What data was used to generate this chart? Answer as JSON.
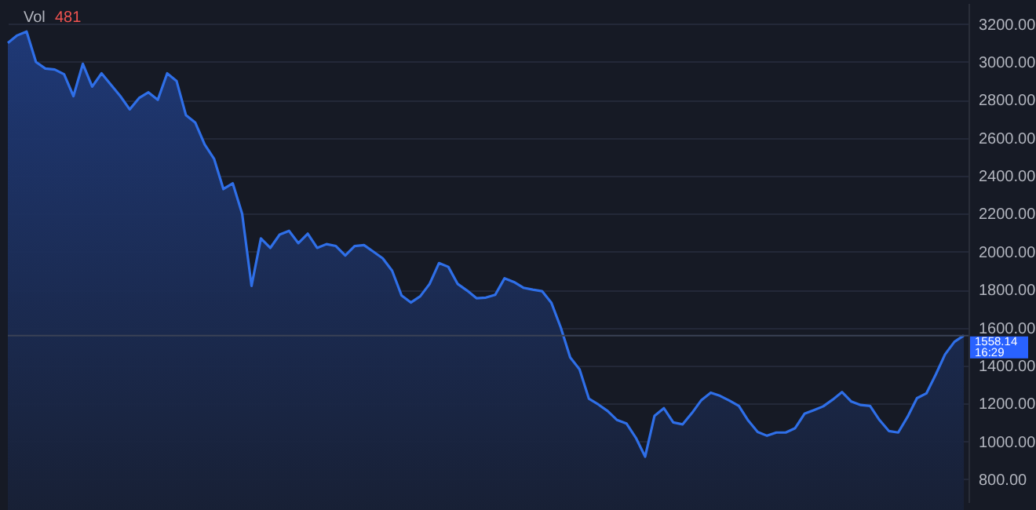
{
  "chart_data": {
    "type": "area",
    "categories": [
      null,
      null,
      null,
      null,
      null,
      null,
      null,
      null,
      null,
      null,
      null,
      null,
      null,
      null,
      null,
      null,
      null,
      null,
      null,
      null,
      null,
      null,
      null,
      null,
      null,
      null,
      null,
      null,
      null,
      null,
      null,
      null,
      null,
      null,
      null,
      null,
      null,
      null,
      null,
      null,
      null,
      null,
      null,
      null,
      null,
      null,
      null,
      null,
      null,
      null,
      null,
      null,
      null,
      null,
      null,
      null,
      null,
      null,
      null,
      null,
      null,
      null,
      null,
      null,
      null,
      null,
      null,
      null,
      null,
      null,
      null,
      null,
      null,
      null,
      null,
      null,
      null,
      null,
      null,
      null,
      null,
      null,
      null,
      null,
      null,
      null,
      null,
      null,
      null,
      null,
      null,
      null,
      null,
      null,
      null,
      null,
      null,
      null,
      null,
      null,
      null,
      null,
      null
    ],
    "series": [
      {
        "color": "#2f6fe8",
        "values": [
          3100,
          3140,
          3160,
          3000,
          2965,
          2960,
          2935,
          2820,
          2990,
          2870,
          2940,
          2880,
          2820,
          2750,
          2810,
          2840,
          2800,
          2940,
          2900,
          2720,
          2680,
          2565,
          2490,
          2330,
          2360,
          2200,
          1820,
          2070,
          2020,
          2090,
          2110,
          2045,
          2095,
          2020,
          2040,
          2030,
          1980,
          2030,
          2035,
          2000,
          1965,
          1900,
          1770,
          1732,
          1765,
          1830,
          1940,
          1920,
          1830,
          1795,
          1755,
          1758,
          1773,
          1860,
          1840,
          1810,
          1800,
          1792,
          1730,
          1600,
          1443,
          1380,
          1225,
          1195,
          1160,
          1113,
          1095,
          1020,
          920,
          1135,
          1175,
          1100,
          1090,
          1150,
          1218,
          1257,
          1240,
          1215,
          1187,
          1110,
          1050,
          1030,
          1047,
          1047,
          1070,
          1146,
          1165,
          1185,
          1220,
          1260,
          1210,
          1192,
          1187,
          1113,
          1055,
          1047,
          1130,
          1228,
          1253,
          1352,
          1459,
          1525,
          1558.14
        ]
      }
    ],
    "ylim": [
      680,
      3310
    ],
    "yticks": [
      {
        "value": 800,
        "label": "800.00"
      },
      {
        "value": 1000,
        "label": "1000.00"
      },
      {
        "value": 1200,
        "label": "1200.00"
      },
      {
        "value": 1400,
        "label": "1400.00"
      },
      {
        "value": 1600,
        "label": "1600.00"
      },
      {
        "value": 1800,
        "label": "1800.00"
      },
      {
        "value": 2000,
        "label": "2000.00"
      },
      {
        "value": 2200,
        "label": "2200.00"
      },
      {
        "value": 2400,
        "label": "2400.00"
      },
      {
        "value": 2600,
        "label": "2600.00"
      },
      {
        "value": 2800,
        "label": "2800.00"
      },
      {
        "value": 3000,
        "label": "3000.00"
      },
      {
        "value": 3200,
        "label": "3200.00"
      }
    ],
    "ref_lines": [
      {
        "axis": "y",
        "value": 1558.14,
        "label": "1558.14",
        "color": "#3a4255"
      }
    ],
    "annotations": [
      "Vol",
      "481",
      "16:29"
    ],
    "grid": "y",
    "tick_labels": "y",
    "legend": false
  }
}
